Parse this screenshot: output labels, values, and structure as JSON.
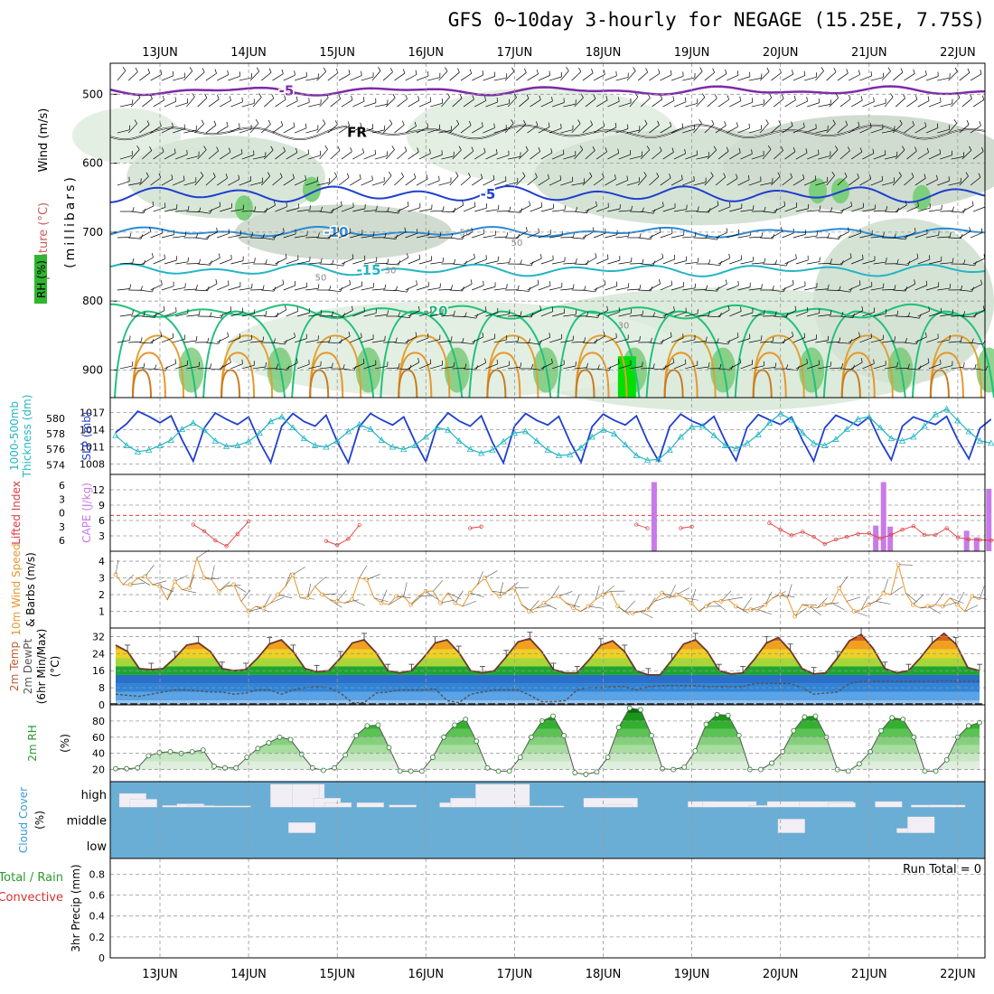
{
  "title": "GFS 0~10day 3-hourly for NEGAGE (15.25E, 7.75S)",
  "dates": [
    "13JUN",
    "14JUN",
    "15JUN",
    "16JUN",
    "17JUN",
    "18JUN",
    "19JUN",
    "20JUN",
    "21JUN",
    "22JUN"
  ],
  "colors": {
    "rh_green": "#2fb52f",
    "cloud_blue": "#6aaed6",
    "wind_orange": "#e8962a",
    "lifted_red": "#e03a3a",
    "cape_purple": "#c87ae8",
    "slp_blue": "#1f3fcf",
    "thick_cyan": "#22b5c5"
  },
  "chart_data": [
    {
      "id": "upper",
      "type": "heatmap",
      "ylabel_parts": [
        "Wind (m/s)",
        "Temperature (°C)",
        "(millibars)",
        "RH (%)"
      ],
      "yticks": [
        500,
        600,
        700,
        800,
        900
      ],
      "ylim": [
        940,
        455
      ],
      "isotherms": [
        {
          "label": "-5",
          "pressure": 495
        },
        {
          "label": "FR",
          "pressure": 555
        },
        {
          "label": "-5",
          "pressure": 645
        },
        {
          "label": "-10",
          "pressure": 700
        },
        {
          "label": "-15",
          "pressure": 755
        },
        {
          "label": "-20",
          "pressure": 815
        }
      ],
      "rh_labels": [
        "50",
        "30"
      ]
    },
    {
      "id": "slp",
      "type": "line",
      "ylabel_left": [
        "1000-500mb",
        "Thickness (dm)"
      ],
      "ylabel_right": "SLP (mb)",
      "left_ticks": [
        574,
        576,
        578,
        580
      ],
      "right_ticks": [
        1008,
        1011,
        1014,
        1017
      ],
      "series": [
        {
          "name": "SLP (mb)",
          "values": [
            1013.5,
            1015,
            1017.2,
            1016.3,
            1015.2,
            1016.4,
            1012.2,
            1008.5,
            1014.3,
            1016.9,
            1015.8,
            1014.9,
            1016.2,
            1011.8,
            1008.3,
            1014.6,
            1016.8,
            1015.4,
            1014.6,
            1016.5,
            1011.9,
            1008.2,
            1014.5,
            1016.8,
            1015.7,
            1014.8,
            1016.2,
            1012.0,
            1008.4,
            1014.6,
            1016.9,
            1015.5,
            1014.6,
            1016.4,
            1011.8,
            1008.2,
            1014.6,
            1016.8,
            1015.6,
            1014.8,
            1016.3,
            1011.9,
            1008.3,
            1014.5,
            1016.7,
            1015.6,
            1014.8,
            1016.4,
            1012.0,
            1008.5,
            1014.5,
            1016.7,
            1015.5,
            1014.7,
            1016.3,
            1012.1,
            1008.6,
            1014.4,
            1016.6,
            1015.7,
            1014.9,
            1016.2,
            1012.1,
            1008.5,
            1014.3,
            1016.5,
            1015.6,
            1014.7,
            1016.2,
            1012.0,
            1008.7,
            1014.6,
            1016.2,
            1015.5,
            1014.9,
            1016.3,
            1012.2,
            1008.9,
            1014.2,
            1015.8
          ]
        },
        {
          "name": "Thickness (dm)",
          "values": [
            577.8,
            576.5,
            575.7,
            575.9,
            576.5,
            577.2,
            578.6,
            579.4,
            578.5,
            577.1,
            576.4,
            576.5,
            577.0,
            578.1,
            579.6,
            580.2,
            578.8,
            577.4,
            576.5,
            576.3,
            577.1,
            578.3,
            579.2,
            578.6,
            577.2,
            576.3,
            576.0,
            576.5,
            577.6,
            578.8,
            578.5,
            577.1,
            576.0,
            575.5,
            575.9,
            577.0,
            578.1,
            578.3,
            577.1,
            575.9,
            575.2,
            575.3,
            576.2,
            577.6,
            578.5,
            578.0,
            576.6,
            575.2,
            574.6,
            574.7,
            575.9,
            577.6,
            578.9,
            579.0,
            577.8,
            576.5,
            576.1,
            576.8,
            577.9,
            579.4,
            580.6,
            579.8,
            578.1,
            576.8,
            576.5,
            577.3,
            578.6,
            579.9,
            580.2,
            578.8,
            577.4,
            577.1,
            577.6,
            579.0,
            580.5,
            581.2,
            579.7,
            578.3,
            577.1,
            576.8
          ]
        }
      ]
    },
    {
      "id": "cape",
      "type": "bar",
      "ylabel_left": "Lifted Index",
      "ylabel_right": "CAPE (J/kg)",
      "left_ticks": [
        6,
        3,
        0,
        -3,
        -6
      ],
      "right_ticks": [
        3,
        6,
        9,
        12
      ],
      "lifted_index": [
        null,
        null,
        null,
        null,
        null,
        null,
        null,
        5.2,
        3.9,
        2.1,
        1.0,
        3.4,
        5.8,
        null,
        null,
        null,
        null,
        null,
        null,
        2.0,
        1.2,
        2.4,
        5.1,
        null,
        null,
        null,
        null,
        null,
        null,
        null,
        null,
        null,
        4.5,
        4.8,
        null,
        null,
        null,
        null,
        null,
        null,
        null,
        null,
        null,
        null,
        null,
        null,
        null,
        5.2,
        4.5,
        null,
        null,
        4.5,
        4.8,
        null,
        null,
        null,
        null,
        null,
        null,
        5.5,
        4.2,
        3.1,
        3.8,
        2.8,
        1.4,
        2.3,
        2.8,
        3.4,
        3.5,
        2.5,
        3.2,
        4.2,
        4.9,
        3.2,
        3.2,
        4.5,
        2.7,
        2.3,
        2.2,
        2.1,
        2.6,
        2.4,
        3.0,
        3.4,
        3.5,
        4.0,
        3.5,
        0.8,
        1.5,
        3.6,
        3.7,
        3.4,
        3.5,
        2.3,
        3.4,
        3.1,
        3.1,
        4.0,
        4.6,
        5.6,
        5.0,
        3.5,
        3.4,
        2.2,
        2.5,
        2.3,
        3.5,
        3.8,
        3.5,
        3.2,
        4.2,
        4.3,
        3.8,
        4.4,
        4.0,
        5.2,
        4.9,
        3.8,
        4.1,
        null,
        3.8,
        3.6,
        3.2,
        3.2,
        3.4,
        3.5,
        3.6,
        3.4,
        3.2,
        3.1,
        3.1,
        2.7,
        2.5
      ],
      "cape": [
        {
          "t": 48.6,
          "v": 13.5
        },
        {
          "t": 68.6,
          "v": 5
        },
        {
          "t": 69.3,
          "v": 13.5
        },
        {
          "t": 69.9,
          "v": 4.8
        },
        {
          "t": 76.8,
          "v": 4
        },
        {
          "t": 77.7,
          "v": 2.7
        },
        {
          "t": 78.8,
          "v": 12.2
        }
      ]
    },
    {
      "id": "wind10m",
      "type": "line",
      "ylabel": [
        "10m Wind Speed",
        "& Barbs (m/s)"
      ],
      "yticks": [
        1,
        2,
        3,
        4
      ],
      "ylim": [
        0,
        4.6
      ],
      "series": [
        {
          "name": "10m Wind Speed",
          "values": [
            3.2,
            2.6,
            2.6,
            3.0,
            3.1,
            2.6,
            2.5,
            1.7,
            2.8,
            2.3,
            2.4,
            4.2,
            3.0,
            2.9,
            2.2,
            2.5,
            2.6,
            1.6,
            1.0,
            1.3,
            1.2,
            1.5,
            2.0,
            2.5,
            3.2,
            1.8,
            1.8,
            2.5,
            2.0,
            1.7,
            1.6,
            1.5,
            1.7,
            3.0,
            2.9,
            1.8,
            1.5,
            1.4,
            1.9,
            1.9,
            1.4,
            1.9,
            2.2,
            2.2,
            1.5,
            2.1,
            1.5,
            1.3,
            2.1,
            2.6,
            3.0,
            2.2,
            1.9,
            2.2,
            2.4,
            1.4,
            1.0,
            1.2,
            1.5,
            1.8,
            1.9,
            1.5,
            1.2,
            1.0,
            1.3,
            1.7,
            2.0,
            2.2,
            1.3,
            1.0,
            0.9,
            1.0,
            1.1,
            1.6,
            2.1,
            1.8,
            2.0,
            1.8,
            1.5,
            1.0,
            1.3,
            1.6,
            1.6,
            1.7,
            1.3,
            1.1,
            1.1,
            1.1,
            1.4,
            1.8,
            2.0,
            1.8,
            0.7,
            1.4,
            1.3,
            1.2,
            1.4,
            1.5,
            2.4,
            1.6,
            1.0,
            1.1,
            1.4,
            1.6,
            2.1,
            2.0,
            3.8,
            2.1,
            1.4,
            1.2,
            1.3,
            1.4,
            1.3,
            1.8,
            1.4,
            1.0,
            1.9,
            1.7
          ]
        }
      ]
    },
    {
      "id": "temp2m",
      "type": "area",
      "ylabel": [
        "2m Temp",
        "2m DewPt",
        "(6hr Min/Max)",
        "(°C)"
      ],
      "yticks": [
        0,
        8,
        16,
        24,
        32
      ],
      "ylim": [
        0,
        36
      ],
      "series": [
        {
          "name": "2m Temp",
          "values": [
            28,
            25,
            17,
            16.5,
            17,
            22,
            28,
            29,
            25,
            17,
            16,
            16.5,
            22,
            28.5,
            30.5,
            25,
            17,
            15.5,
            16,
            22,
            29,
            30.5,
            24.5,
            16,
            15,
            16,
            22,
            29,
            30.5,
            24.5,
            16,
            15,
            16,
            22.5,
            29.5,
            31,
            25,
            16.5,
            15,
            15,
            21,
            28,
            30,
            25,
            16,
            14,
            14,
            21,
            28.5,
            30.5,
            25,
            16,
            14.5,
            15,
            21.5,
            29,
            31.5,
            25.5,
            17,
            14.5,
            15,
            22,
            30,
            33,
            26.5,
            17,
            15,
            16,
            22,
            29,
            33.5,
            28.5,
            17.5,
            16
          ]
        },
        {
          "name": "2m DewPt",
          "values": [
            5,
            4.5,
            4,
            5,
            6,
            7,
            7,
            6.5,
            6,
            6,
            5,
            5.5,
            7,
            7,
            5,
            7,
            8,
            8.5,
            8,
            5.5,
            1,
            1,
            5.5,
            6,
            7,
            7,
            7,
            7.5,
            2,
            1,
            5,
            6,
            7,
            7,
            7,
            4.5,
            1.5,
            1.5,
            2,
            7,
            8,
            8,
            8.5,
            8.5,
            7,
            8.5,
            9,
            9,
            9,
            9,
            8.5,
            8.5,
            8.5,
            8.5,
            10,
            10,
            10,
            10,
            8,
            5,
            5.5,
            6,
            10,
            11,
            11,
            11,
            11,
            11,
            11,
            11,
            11.5,
            11,
            11,
            11
          ]
        }
      ]
    },
    {
      "id": "rh2m",
      "type": "area",
      "ylabel": [
        "2m RH",
        "(%)"
      ],
      "yticks": [
        20,
        40,
        60,
        80
      ],
      "ylim": [
        5,
        100
      ],
      "series": [
        {
          "name": "2m RH",
          "values": [
            21,
            21,
            22,
            37,
            41,
            42,
            40,
            42,
            44,
            24,
            22,
            22,
            35,
            46,
            53,
            60,
            57,
            39,
            22,
            19,
            22,
            38,
            62,
            74,
            75,
            47,
            18,
            18,
            18,
            35,
            60,
            75,
            82,
            55,
            22,
            18,
            18,
            35,
            60,
            80,
            86,
            62,
            16,
            14,
            17,
            35,
            72,
            96,
            94,
            62,
            21,
            20,
            23,
            43,
            76,
            88,
            87,
            62,
            20,
            20,
            28,
            42,
            68,
            85,
            86,
            60,
            20,
            18,
            27,
            42,
            68,
            84,
            82,
            60,
            18,
            18,
            32,
            60,
            74,
            78
          ]
        }
      ]
    },
    {
      "id": "cloud",
      "type": "bar",
      "ylabel": [
        "Cloud Cover",
        "(%)"
      ],
      "levels": [
        "high",
        "middle",
        "low"
      ],
      "high": [
        {
          "t": 1,
          "d": 3,
          "v": 60
        },
        {
          "t": 4,
          "d": 3,
          "v": 35
        },
        {
          "t": 13,
          "d": 3,
          "v": 8
        },
        {
          "t": 17,
          "d": 3,
          "v": 15
        },
        {
          "t": 20,
          "d": 3,
          "v": 8
        },
        {
          "t": 25,
          "d": 3,
          "v": 6
        },
        {
          "t": 30,
          "d": 3,
          "v": 6
        },
        {
          "t": 43,
          "d": 6,
          "v": 100
        },
        {
          "t": 49,
          "d": 3,
          "v": 100
        },
        {
          "t": 55,
          "d": 3,
          "v": 40
        },
        {
          "t": 58,
          "d": 3,
          "v": 20
        },
        {
          "t": 67,
          "d": 3,
          "v": 20
        },
        {
          "t": 76,
          "d": 3,
          "v": 10
        },
        {
          "t": 90,
          "d": 3,
          "v": 20
        },
        {
          "t": 93,
          "d": 6,
          "v": 40
        },
        {
          "t": 100,
          "d": 6,
          "v": 100
        },
        {
          "t": 111,
          "d": 3,
          "v": 6
        },
        {
          "t": 117,
          "d": 3,
          "v": 6
        },
        {
          "t": 130,
          "d": 6,
          "v": 40
        },
        {
          "t": 136,
          "d": 3,
          "v": 10
        },
        {
          "t": 159,
          "d": 3,
          "v": 25
        },
        {
          "t": 163,
          "d": 6,
          "v": 25
        },
        {
          "t": 176,
          "d": 3,
          "v": 8
        },
        {
          "t": 181,
          "d": 6,
          "v": 25
        },
        {
          "t": 190,
          "d": 6,
          "v": 25
        },
        {
          "t": 198,
          "d": 3,
          "v": 20
        },
        {
          "t": 211,
          "d": 3,
          "v": 25
        },
        {
          "t": 221,
          "d": 6,
          "v": 10
        },
        {
          "t": 226,
          "d": 3,
          "v": 10
        }
      ],
      "middle": [
        {
          "t": 48,
          "d": 3,
          "v": 45
        },
        {
          "t": 184,
          "d": 3,
          "v": 60
        },
        {
          "t": 217,
          "d": 3,
          "v": 20
        },
        {
          "t": 220,
          "d": 3,
          "v": 70
        }
      ],
      "low": []
    },
    {
      "id": "precip",
      "type": "bar",
      "ylabel": [
        "Total / Rain",
        "Convective",
        "3hr Precip (mm)"
      ],
      "yticks": [
        0,
        0.2,
        0.4,
        0.6,
        0.8
      ],
      "ylim": [
        0,
        0.95
      ],
      "run_total": "Run Total = 0",
      "values": []
    }
  ]
}
